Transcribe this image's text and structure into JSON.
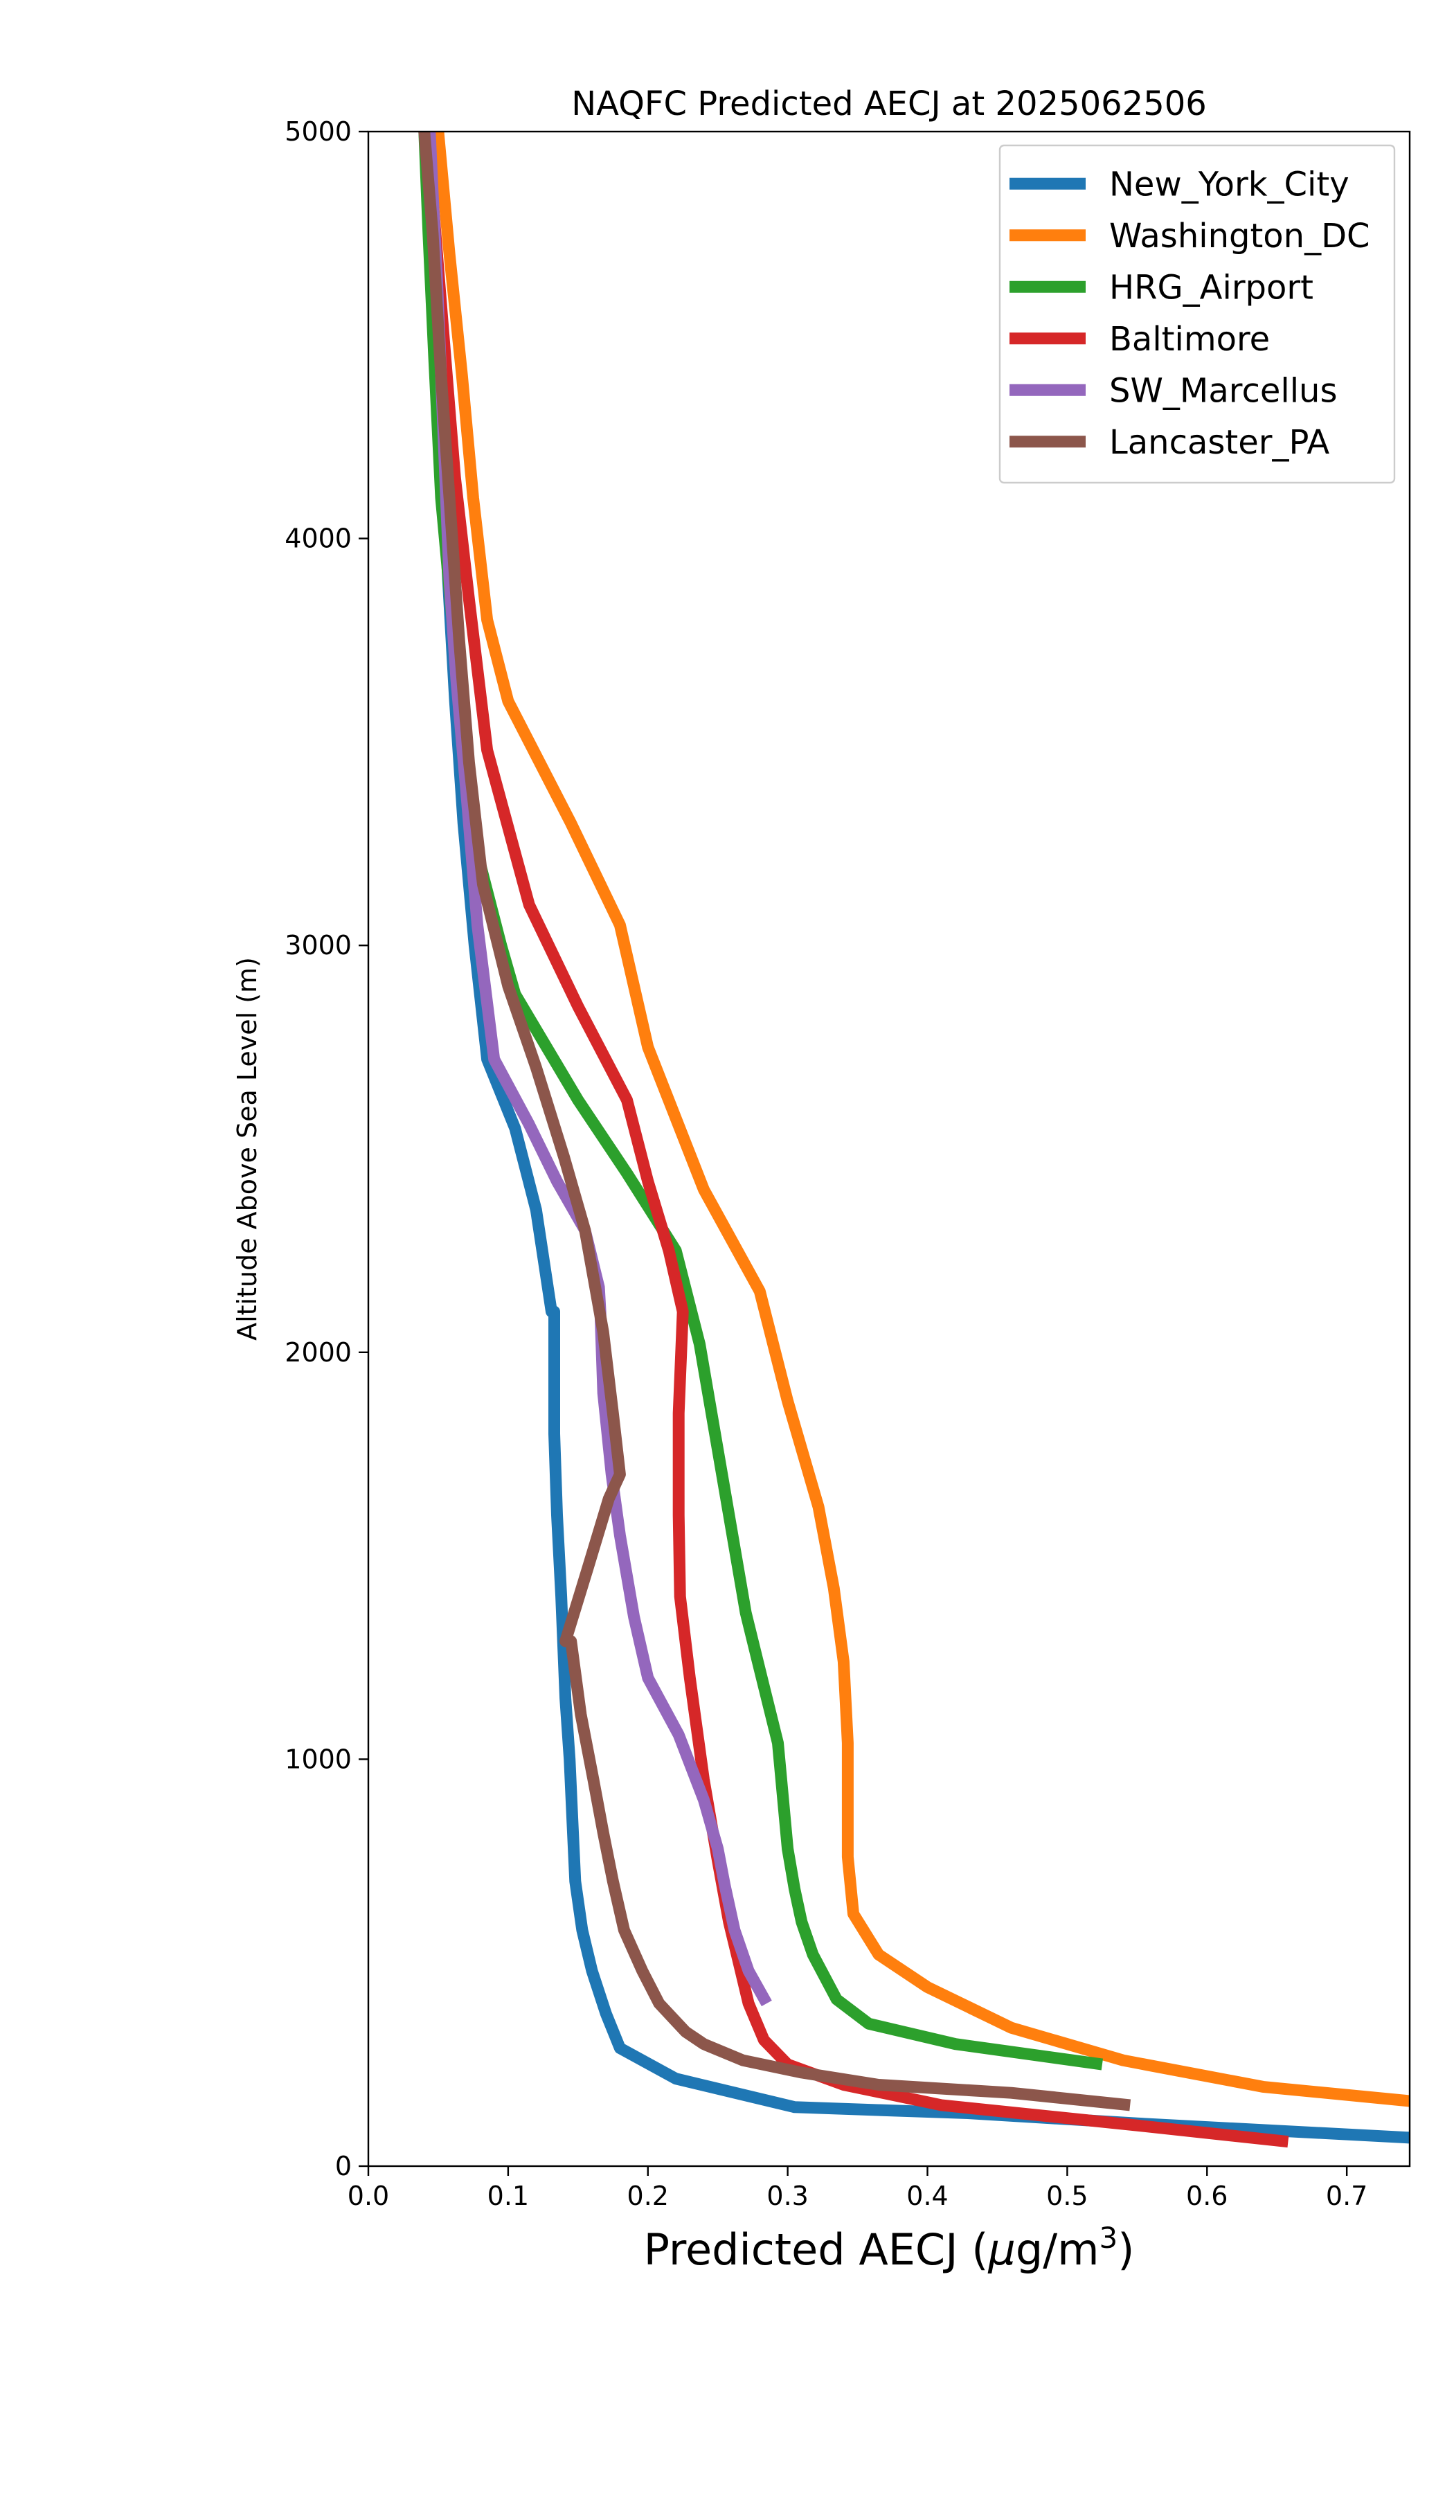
{
  "chart_data": {
    "type": "line",
    "title": "NAQFC Predicted AECJ at 2025062506",
    "xlabel_main": "Predicted AECJ (",
    "xlabel_mu": "μ",
    "xlabel_unit": "g/m",
    "xlabel_sup": "3",
    "xlabel_close": ")",
    "ylabel": "Altitude Above Sea Level (m)",
    "xlim": [
      0.0,
      0.745
    ],
    "ylim": [
      0,
      5000
    ],
    "xticks": [
      0.0,
      0.1,
      0.2,
      0.3,
      0.4,
      0.5,
      0.6,
      0.7
    ],
    "xtick_labels": [
      "0.0",
      "0.1",
      "0.2",
      "0.3",
      "0.4",
      "0.5",
      "0.6",
      "0.7"
    ],
    "yticks": [
      0,
      1000,
      2000,
      3000,
      4000,
      5000
    ],
    "ytick_labels": [
      "0",
      "1000",
      "2000",
      "3000",
      "4000",
      "5000"
    ],
    "grid": false,
    "legend_position": "top-right",
    "series": [
      {
        "name": "New_York_City",
        "color": "#1f77b4",
        "x": [
          0.745,
          0.55,
          0.43,
          0.305,
          0.22,
          0.18,
          0.17,
          0.16,
          0.153,
          0.148,
          0.146,
          0.144,
          0.141,
          0.138,
          0.135,
          0.133,
          0.133,
          0.131,
          0.12,
          0.105,
          0.085,
          0.076,
          0.068,
          0.062,
          0.057,
          0.053,
          0.05,
          0.046,
          0.042
        ],
        "y": [
          70,
          105,
          130,
          145,
          215,
          290,
          375,
          480,
          580,
          700,
          850,
          1000,
          1150,
          1400,
          1600,
          1800,
          2100,
          2100,
          2350,
          2550,
          2720,
          3000,
          3300,
          3600,
          3900,
          4200,
          4500,
          4800,
          5000
        ]
      },
      {
        "name": "Washington_DC",
        "color": "#ff7f0e",
        "x": [
          0.745,
          0.64,
          0.54,
          0.46,
          0.4,
          0.365,
          0.347,
          0.343,
          0.343,
          0.34,
          0.333,
          0.322,
          0.3,
          0.28,
          0.24,
          0.2,
          0.18,
          0.145,
          0.1,
          0.085,
          0.075,
          0.067,
          0.058,
          0.05,
          0.042
        ],
        "y": [
          160,
          195,
          260,
          340,
          440,
          520,
          620,
          760,
          1040,
          1240,
          1420,
          1620,
          1880,
          2150,
          2400,
          2750,
          3050,
          3300,
          3600,
          3800,
          4100,
          4400,
          4700,
          5000,
          5000
        ]
      },
      {
        "name": "HRG_Airport",
        "color": "#2ca02c",
        "x": [
          0.525,
          0.42,
          0.358,
          0.335,
          0.318,
          0.31,
          0.305,
          0.3,
          0.293,
          0.28,
          0.27,
          0.26,
          0.248,
          0.237,
          0.22,
          0.185,
          0.15,
          0.105,
          0.095,
          0.08,
          0.068,
          0.06,
          0.052,
          0.047,
          0.043,
          0.04
        ],
        "y": [
          250,
          300,
          350,
          410,
          520,
          600,
          680,
          780,
          1040,
          1220,
          1360,
          1560,
          1800,
          2020,
          2250,
          2440,
          2620,
          2880,
          3000,
          3200,
          3500,
          3800,
          4100,
          4450,
          4750,
          5000
        ]
      },
      {
        "name": "Baltimore",
        "color": "#d62728",
        "x": [
          0.658,
          0.55,
          0.41,
          0.34,
          0.3,
          0.283,
          0.272,
          0.265,
          0.258,
          0.25,
          0.24,
          0.23,
          0.223,
          0.222,
          0.222,
          0.225,
          0.215,
          0.2,
          0.185,
          0.15,
          0.115,
          0.085,
          0.072,
          0.062,
          0.055,
          0.048,
          0.042
        ],
        "y": [
          60,
          100,
          150,
          200,
          250,
          310,
          400,
          500,
          600,
          750,
          950,
          1200,
          1400,
          1600,
          1850,
          2100,
          2250,
          2420,
          2620,
          2850,
          3100,
          3480,
          3850,
          4150,
          4450,
          4750,
          5000
        ]
      },
      {
        "name": "SW_Marcellus",
        "color": "#9467bd",
        "x": [
          0.285,
          0.272,
          0.262,
          0.255,
          0.25,
          0.24,
          0.222,
          0.2,
          0.19,
          0.18,
          0.174,
          0.168,
          0.166,
          0.165,
          0.155,
          0.135,
          0.115,
          0.09,
          0.078,
          0.07,
          0.063,
          0.058,
          0.055,
          0.052,
          0.049,
          0.046,
          0.044
        ],
        "y": [
          400,
          480,
          580,
          690,
          780,
          900,
          1060,
          1200,
          1350,
          1550,
          1700,
          1900,
          2100,
          2160,
          2300,
          2420,
          2560,
          2720,
          3050,
          3380,
          3650,
          3900,
          4150,
          4400,
          4650,
          4850,
          5000
        ]
      },
      {
        "name": "Lancaster_PA",
        "color": "#8c564b",
        "x": [
          0.545,
          0.46,
          0.365,
          0.31,
          0.268,
          0.24,
          0.227,
          0.208,
          0.196,
          0.183,
          0.175,
          0.168,
          0.161,
          0.152,
          0.145,
          0.141,
          0.157,
          0.172,
          0.18,
          0.175,
          0.168,
          0.155,
          0.14,
          0.12,
          0.1,
          0.082,
          0.072,
          0.065,
          0.058,
          0.052,
          0.046,
          0.04
        ],
        "y": [
          150,
          180,
          200,
          230,
          260,
          300,
          330,
          400,
          480,
          580,
          700,
          820,
          950,
          1110,
          1290,
          1290,
          1470,
          1640,
          1700,
          1850,
          2050,
          2300,
          2480,
          2700,
          2900,
          3150,
          3450,
          3750,
          4100,
          4400,
          4750,
          5000
        ]
      }
    ]
  }
}
